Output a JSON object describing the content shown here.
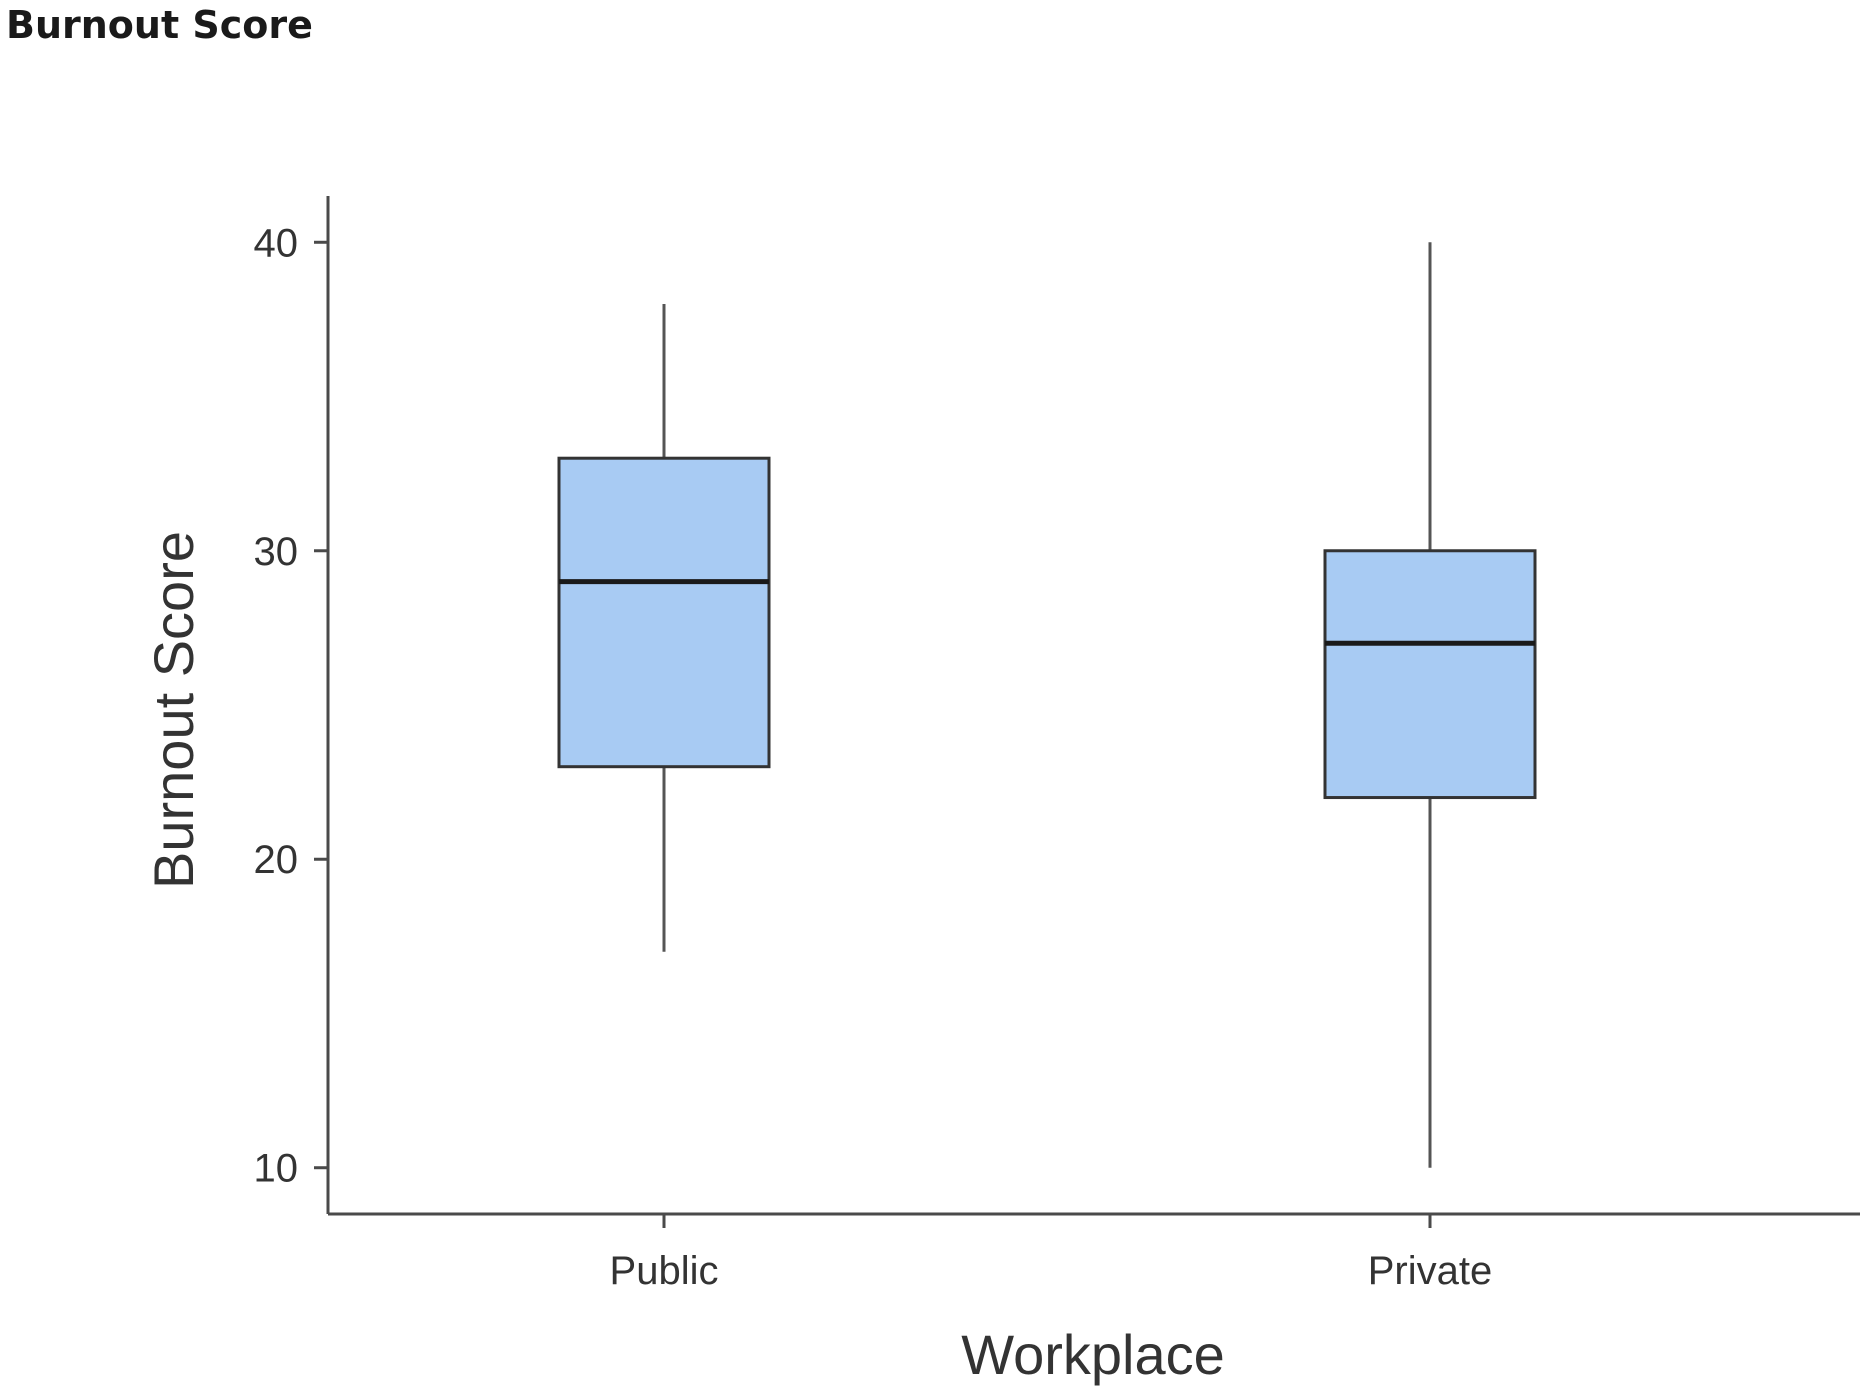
{
  "page": {
    "title": "Burnout Score"
  },
  "chart_data": {
    "type": "box",
    "title": "",
    "xlabel": "Workplace",
    "ylabel": "Burnout Score",
    "ylim": [
      8.5,
      41.5
    ],
    "yticks": [
      10,
      20,
      30,
      40
    ],
    "grid": false,
    "legend": "none",
    "box_color": "#a8cbf3",
    "categories": [
      "Public",
      "Private"
    ],
    "boxes": [
      {
        "category": "Public",
        "whisker_low": 17,
        "q1": 23,
        "median": 29,
        "q3": 33,
        "whisker_high": 38
      },
      {
        "category": "Private",
        "whisker_low": 10,
        "q1": 22,
        "median": 27,
        "q3": 30,
        "whisker_high": 40
      }
    ]
  }
}
